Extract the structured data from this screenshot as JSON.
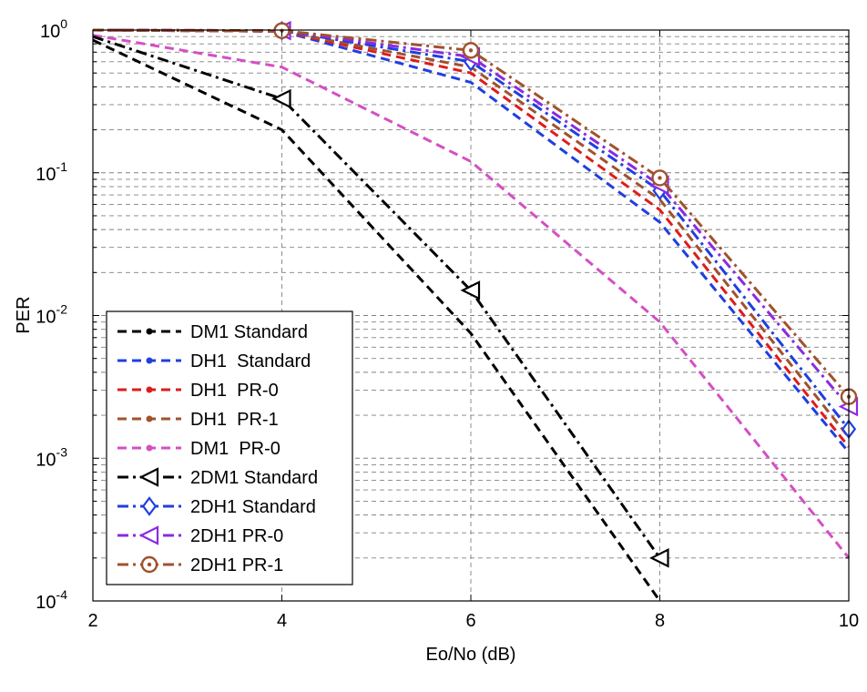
{
  "chart_data": {
    "type": "line",
    "title": "",
    "xlabel": "Eo/No (dB)",
    "ylabel": "PER",
    "xlim": [
      2,
      10
    ],
    "ylim": [
      0.0001,
      1
    ],
    "yscale": "log",
    "grid": true,
    "legend_position": "bottom-left",
    "x_ticks": [
      2,
      4,
      6,
      8,
      10
    ],
    "x_tick_labels": [
      "2",
      "4",
      "6",
      "8",
      "10"
    ],
    "y_ticks": [
      {
        "value": 1,
        "base": "10",
        "exp": "0"
      },
      {
        "value": 0.1,
        "base": "10",
        "exp": "-1"
      },
      {
        "value": 0.01,
        "base": "10",
        "exp": "-2"
      },
      {
        "value": 0.001,
        "base": "10",
        "exp": "-3"
      },
      {
        "value": 0.0001,
        "base": "10",
        "exp": "-4"
      }
    ],
    "series": [
      {
        "name": "DM1 Standard",
        "color": "#000000",
        "dash": "dash",
        "marker": "dot",
        "x": [
          2,
          4,
          6,
          8
        ],
        "y": [
          0.85,
          0.2,
          0.0075,
          0.0001
        ]
      },
      {
        "name": "DH1  Standard",
        "color": "#1f3fe0",
        "dash": "dash",
        "marker": "dot",
        "x": [
          2,
          4,
          6,
          8,
          10
        ],
        "y": [
          1.0,
          0.98,
          0.43,
          0.045,
          0.0011
        ]
      },
      {
        "name": "DH1  PR-0",
        "color": "#e01b1b",
        "dash": "dash",
        "marker": "dot",
        "x": [
          2,
          4,
          6,
          8,
          10
        ],
        "y": [
          1.0,
          0.98,
          0.5,
          0.055,
          0.0012
        ]
      },
      {
        "name": "DH1  PR-1",
        "color": "#a0522d",
        "dash": "dash",
        "marker": "dot",
        "x": [
          2,
          4,
          6,
          8,
          10
        ],
        "y": [
          1.0,
          0.98,
          0.55,
          0.065,
          0.0014
        ]
      },
      {
        "name": "DM1  PR-0",
        "color": "#d44fc4",
        "dash": "dash",
        "marker": "dot",
        "x": [
          2,
          4,
          6,
          8,
          10
        ],
        "y": [
          0.92,
          0.55,
          0.12,
          0.009,
          0.0002
        ]
      },
      {
        "name": "2DM1 Standard",
        "color": "#000000",
        "dash": "dashdot",
        "marker": "triangle-left",
        "x": [
          2,
          4,
          6,
          8
        ],
        "y": [
          0.9,
          0.33,
          0.015,
          0.0002
        ]
      },
      {
        "name": "2DH1 Standard",
        "color": "#1f3fe0",
        "dash": "dashdot",
        "marker": "diamond",
        "x": [
          2,
          4,
          6,
          8,
          10
        ],
        "y": [
          1.0,
          0.99,
          0.6,
          0.075,
          0.0016
        ]
      },
      {
        "name": "2DH1 PR-0",
        "color": "#8a2be2",
        "dash": "dashdot",
        "marker": "triangle-left",
        "x": [
          2,
          4,
          6,
          8,
          10
        ],
        "y": [
          1.0,
          0.99,
          0.65,
          0.082,
          0.0023
        ]
      },
      {
        "name": "2DH1 PR-1",
        "color": "#a0522d",
        "dash": "dashdot",
        "marker": "circle",
        "x": [
          2,
          4,
          6,
          8,
          10
        ],
        "y": [
          1.0,
          0.99,
          0.72,
          0.092,
          0.0027
        ]
      }
    ]
  }
}
